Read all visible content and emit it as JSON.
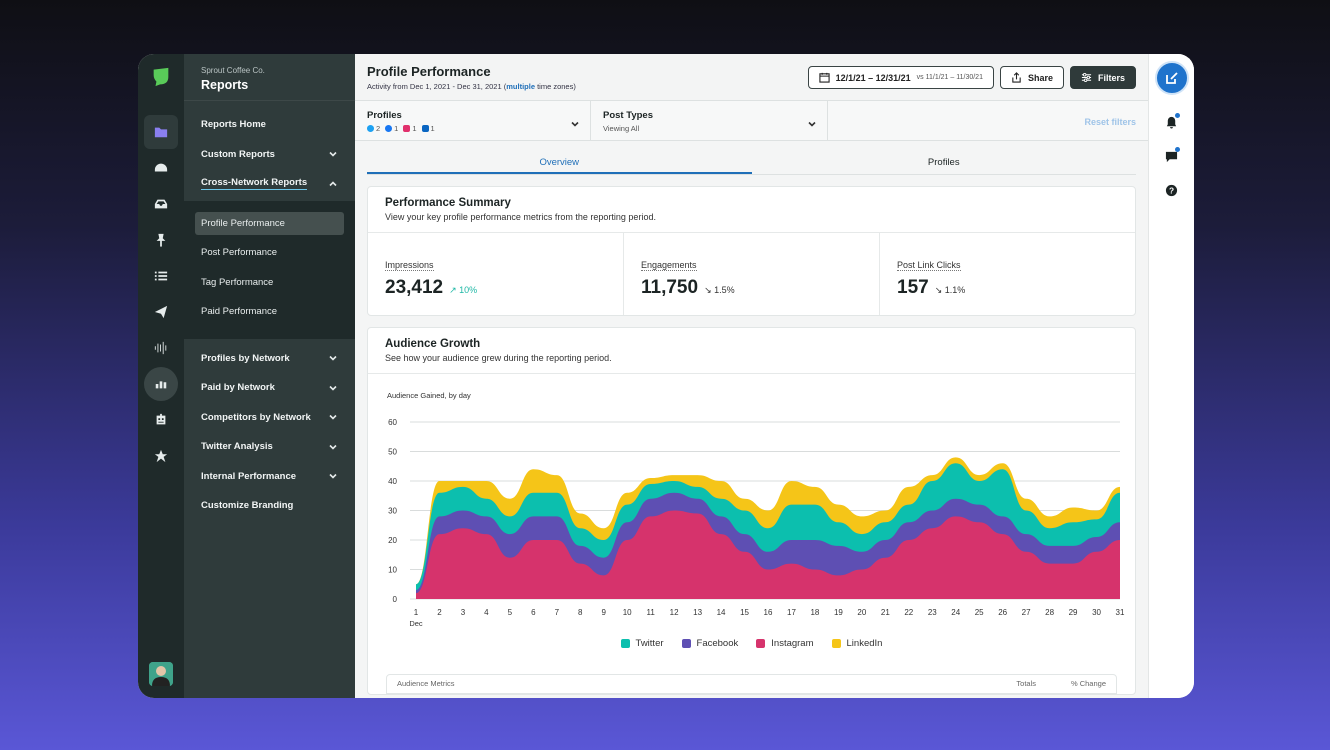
{
  "colors": {
    "twitter": "#0cbfae",
    "facebook": "#5e4fb3",
    "instagram": "#d6336c",
    "linkedin": "#f5c518",
    "accent": "#1f6fb8"
  },
  "rail": {
    "icons": [
      "logo-icon",
      "folder-icon",
      "gauge-icon",
      "inbox-icon",
      "pin-icon",
      "list-icon",
      "send-icon",
      "listening-icon",
      "reports-icon",
      "bot-icon",
      "star-icon"
    ]
  },
  "sidebar": {
    "org": "Sprout Coffee Co.",
    "title": "Reports",
    "items": [
      {
        "label": "Reports Home",
        "chevron": ""
      },
      {
        "label": "Custom Reports",
        "chevron": "down"
      },
      {
        "label": "Cross-Network Reports",
        "chevron": "up"
      }
    ],
    "sub_items": [
      "Profile Performance",
      "Post Performance",
      "Tag Performance",
      "Paid Performance"
    ],
    "more_items": [
      {
        "label": "Profiles by Network"
      },
      {
        "label": "Paid by Network"
      },
      {
        "label": "Competitors by Network"
      },
      {
        "label": "Twitter Analysis"
      },
      {
        "label": "Internal Performance"
      },
      {
        "label": "Customize Branding"
      }
    ]
  },
  "header": {
    "title": "Profile Performance",
    "subtitle_prefix": "Activity from Dec 1, 2021 - Dec 31, 2021 (",
    "subtitle_link": "multiple",
    "subtitle_suffix": " time zones)",
    "date_range": "12/1/21 – 12/31/21",
    "date_vs": "vs 11/1/21 – 11/30/21",
    "share_label": "Share",
    "filters_label": "Filters"
  },
  "filters": {
    "profiles_label": "Profiles",
    "profile_counts": {
      "twitter": "2",
      "facebook": "1",
      "instagram": "1",
      "linkedin": "1"
    },
    "post_types_label": "Post Types",
    "post_types_value": "Viewing All",
    "reset_label": "Reset filters"
  },
  "tabs": [
    "Overview",
    "Profiles"
  ],
  "summary": {
    "title": "Performance Summary",
    "desc": "View your key profile performance metrics from the reporting period.",
    "metrics": [
      {
        "label": "Impressions",
        "value": "23,412",
        "change": "↗ 10%"
      },
      {
        "label": "Engagements",
        "value": "11,750",
        "change": "↘ 1.5%"
      },
      {
        "label": "Post Link Clicks",
        "value": "157",
        "change": "↘ 1.1%"
      }
    ]
  },
  "growth": {
    "title": "Audience Growth",
    "desc": "See how your audience grew during the reporting period.",
    "table_headers": [
      "Audience Metrics",
      "Totals",
      "% Change"
    ]
  },
  "chart_data": {
    "type": "area",
    "stacked": true,
    "title": "Audience Gained, by day",
    "x": [
      1,
      2,
      3,
      4,
      5,
      6,
      7,
      8,
      9,
      10,
      11,
      12,
      13,
      14,
      15,
      16,
      17,
      18,
      19,
      20,
      21,
      22,
      23,
      24,
      25,
      26,
      27,
      28,
      29,
      30,
      31
    ],
    "x_first_sublabel": "Dec",
    "ylim": [
      0,
      60
    ],
    "yticks": [
      0,
      10,
      20,
      30,
      40,
      50,
      60
    ],
    "grid": true,
    "legend_position": "bottom",
    "series": [
      {
        "name": "Instagram",
        "color": "#d6336c",
        "values": [
          2,
          22,
          24,
          22,
          14,
          20,
          20,
          12,
          8,
          20,
          28,
          30,
          29,
          22,
          16,
          10,
          12,
          10,
          8,
          10,
          14,
          20,
          24,
          28,
          26,
          22,
          16,
          12,
          12,
          16,
          20
        ]
      },
      {
        "name": "Facebook",
        "color": "#5e4fb3",
        "values": [
          1,
          6,
          6,
          6,
          8,
          8,
          8,
          6,
          6,
          6,
          6,
          6,
          5,
          6,
          6,
          6,
          8,
          10,
          10,
          6,
          6,
          6,
          6,
          6,
          6,
          6,
          6,
          6,
          6,
          5,
          6
        ]
      },
      {
        "name": "Twitter",
        "color": "#0cbfae",
        "values": [
          2,
          8,
          8,
          6,
          6,
          8,
          8,
          6,
          6,
          6,
          5,
          4,
          4,
          6,
          8,
          8,
          12,
          12,
          8,
          6,
          6,
          6,
          10,
          12,
          8,
          16,
          8,
          6,
          8,
          6,
          10
        ]
      },
      {
        "name": "LinkedIn",
        "color": "#f5c518",
        "values": [
          0,
          4,
          2,
          6,
          6,
          8,
          6,
          5,
          4,
          4,
          2,
          2,
          4,
          6,
          4,
          6,
          8,
          6,
          6,
          6,
          4,
          6,
          2,
          2,
          2,
          2,
          4,
          4,
          5,
          3,
          2
        ]
      }
    ]
  }
}
